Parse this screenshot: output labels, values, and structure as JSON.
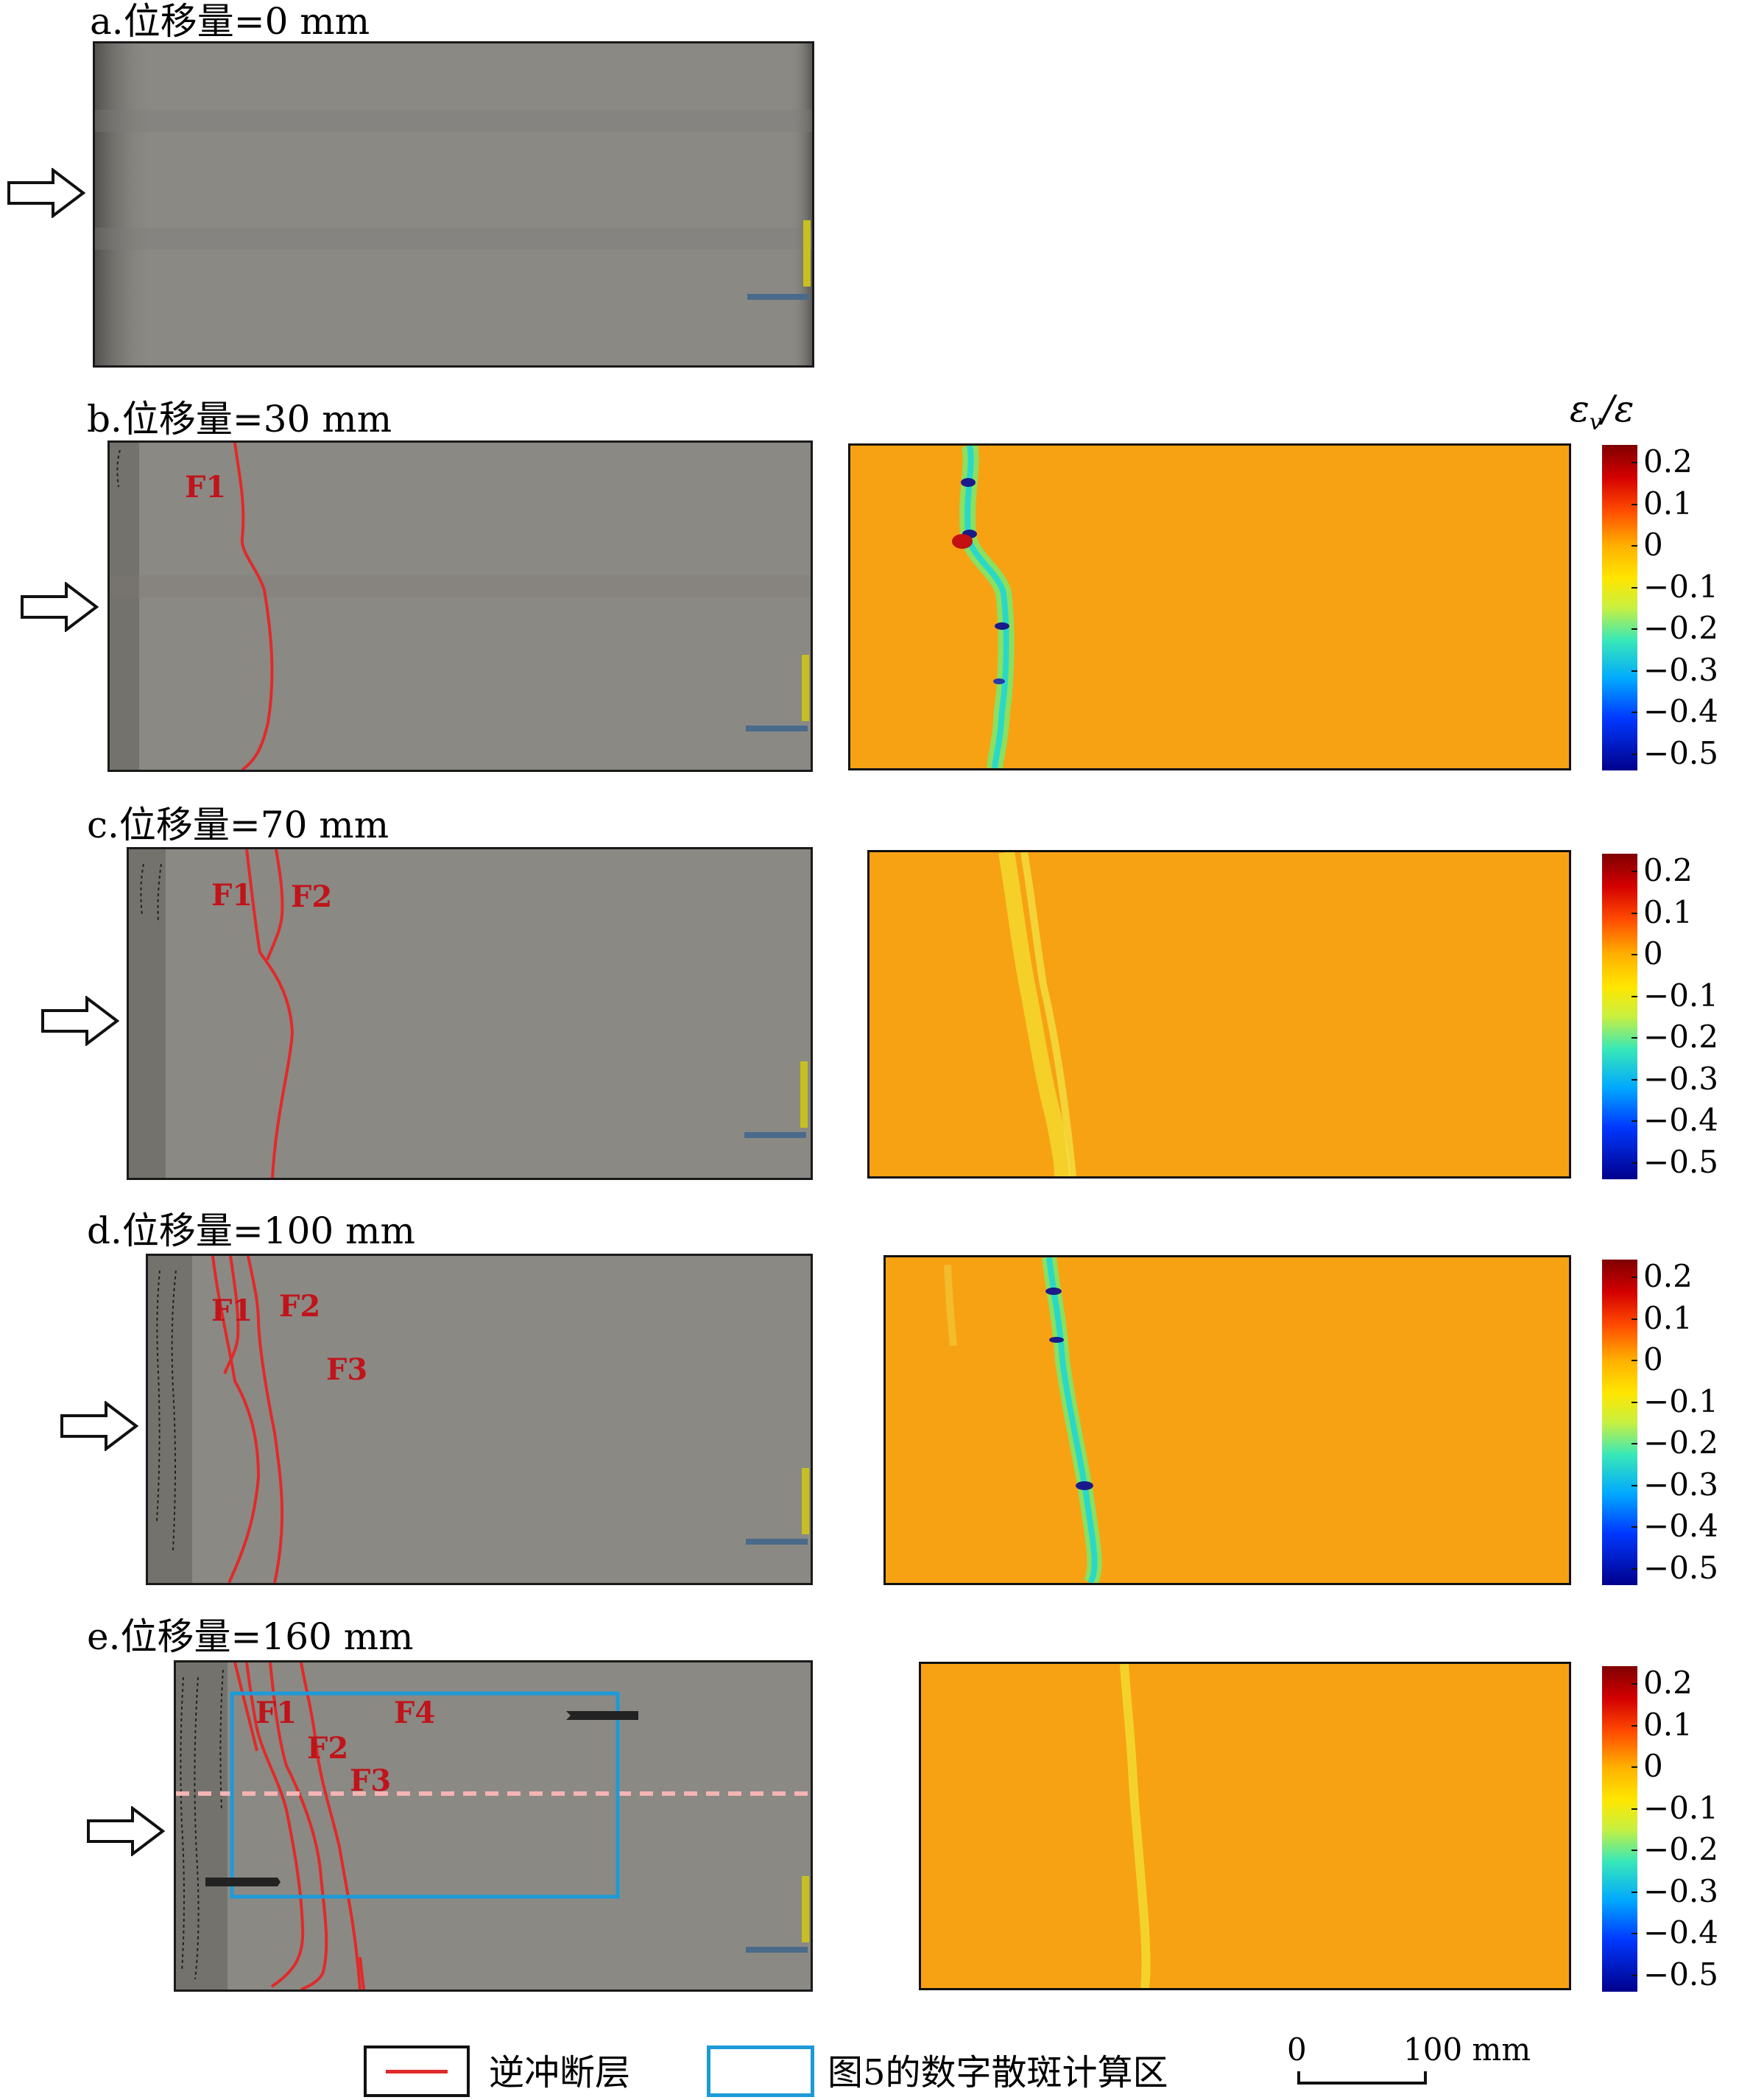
{
  "panels": [
    {
      "id": "a",
      "title": "a.位移量=0 mm",
      "fault_labels": []
    },
    {
      "id": "b",
      "title": "b.位移量=30 mm",
      "fault_labels": [
        "F1"
      ]
    },
    {
      "id": "c",
      "title": "c.位移量=70 mm",
      "fault_labels": [
        "F1",
        "F2"
      ]
    },
    {
      "id": "d",
      "title": "d.位移量=100 mm",
      "fault_labels": [
        "F1",
        "F2",
        "F3"
      ]
    },
    {
      "id": "e",
      "title": "e.位移量=160 mm",
      "fault_labels": [
        "F1",
        "F2",
        "F3",
        "F4"
      ]
    }
  ],
  "colorbar": {
    "label_main": "ε",
    "label_sub": "v",
    "label_tail": "/ε",
    "ticks": [
      "0.2",
      "0.1",
      "0",
      "−0.1",
      "−0.2",
      "−0.3",
      "−0.4",
      "−0.5"
    ],
    "range": [
      -0.5,
      0.2
    ]
  },
  "legend": {
    "fault_label": "逆冲断层",
    "dic_label": "图5的数字散斑计算区",
    "scale_start": "0",
    "scale_end": "100 mm",
    "fault_color": "#e02a2a",
    "dic_color": "#1d9ad8"
  },
  "colors": {
    "fault": "#e02a2a",
    "fault_label": "#c0141b",
    "dic_area": "#1d9ad8",
    "strain_background": "#f7a213",
    "photo_background": "#8b8984"
  }
}
